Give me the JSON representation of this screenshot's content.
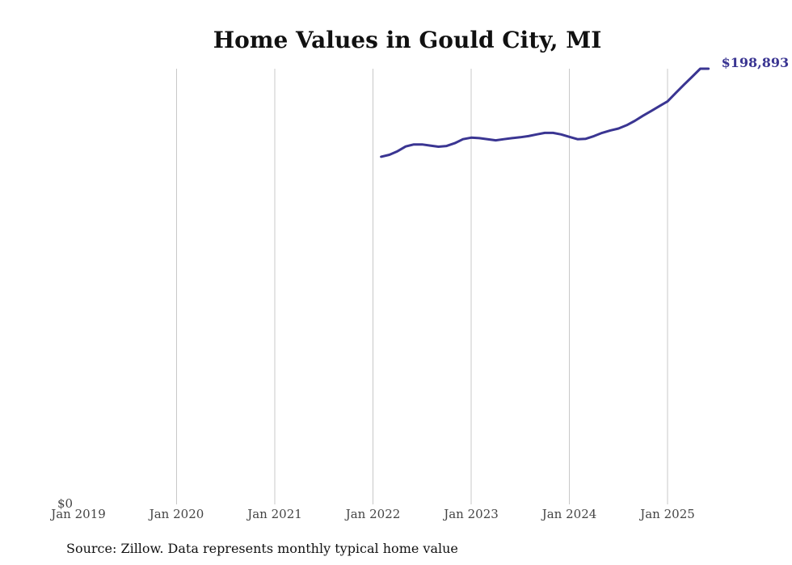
{
  "chart_data": {
    "type": "line",
    "title": "Home Values in Gould City, MI",
    "source": "Source: Zillow. Data represents monthly typical home value",
    "x_ticks": [
      "Jan 2019",
      "Jan 2020",
      "Jan 2021",
      "Jan 2022",
      "Jan 2023",
      "Jan 2024",
      "Jan 2025"
    ],
    "x_range": [
      "2019-01",
      "2025-06"
    ],
    "ylim": [
      0,
      198893
    ],
    "y_tick_label": "$0",
    "grid": "vertical",
    "end_label": "$198,893",
    "series": [
      {
        "color": "#3a3592",
        "x": [
          "2022-02",
          "2022-03",
          "2022-04",
          "2022-05",
          "2022-06",
          "2022-07",
          "2022-08",
          "2022-09",
          "2022-10",
          "2022-11",
          "2022-12",
          "2023-01",
          "2023-02",
          "2023-03",
          "2023-04",
          "2023-05",
          "2023-06",
          "2023-07",
          "2023-08",
          "2023-09",
          "2023-10",
          "2023-11",
          "2023-12",
          "2024-01",
          "2024-02",
          "2024-03",
          "2024-04",
          "2024-05",
          "2024-06",
          "2024-07",
          "2024-08",
          "2024-09",
          "2024-10",
          "2024-11",
          "2024-12",
          "2025-01",
          "2025-02",
          "2025-03",
          "2025-04",
          "2025-05",
          "2025-06"
        ],
        "values": [
          158700,
          159600,
          161200,
          163400,
          164300,
          164300,
          163800,
          163300,
          163600,
          164900,
          166700,
          167400,
          167200,
          166700,
          166200,
          166700,
          167200,
          167600,
          168100,
          168900,
          169600,
          169600,
          168900,
          167800,
          166700,
          166900,
          168100,
          169600,
          170700,
          171600,
          173100,
          175100,
          177400,
          179600,
          181800,
          184000,
          187800,
          191600,
          195200,
          198900,
          198893
        ]
      }
    ]
  }
}
